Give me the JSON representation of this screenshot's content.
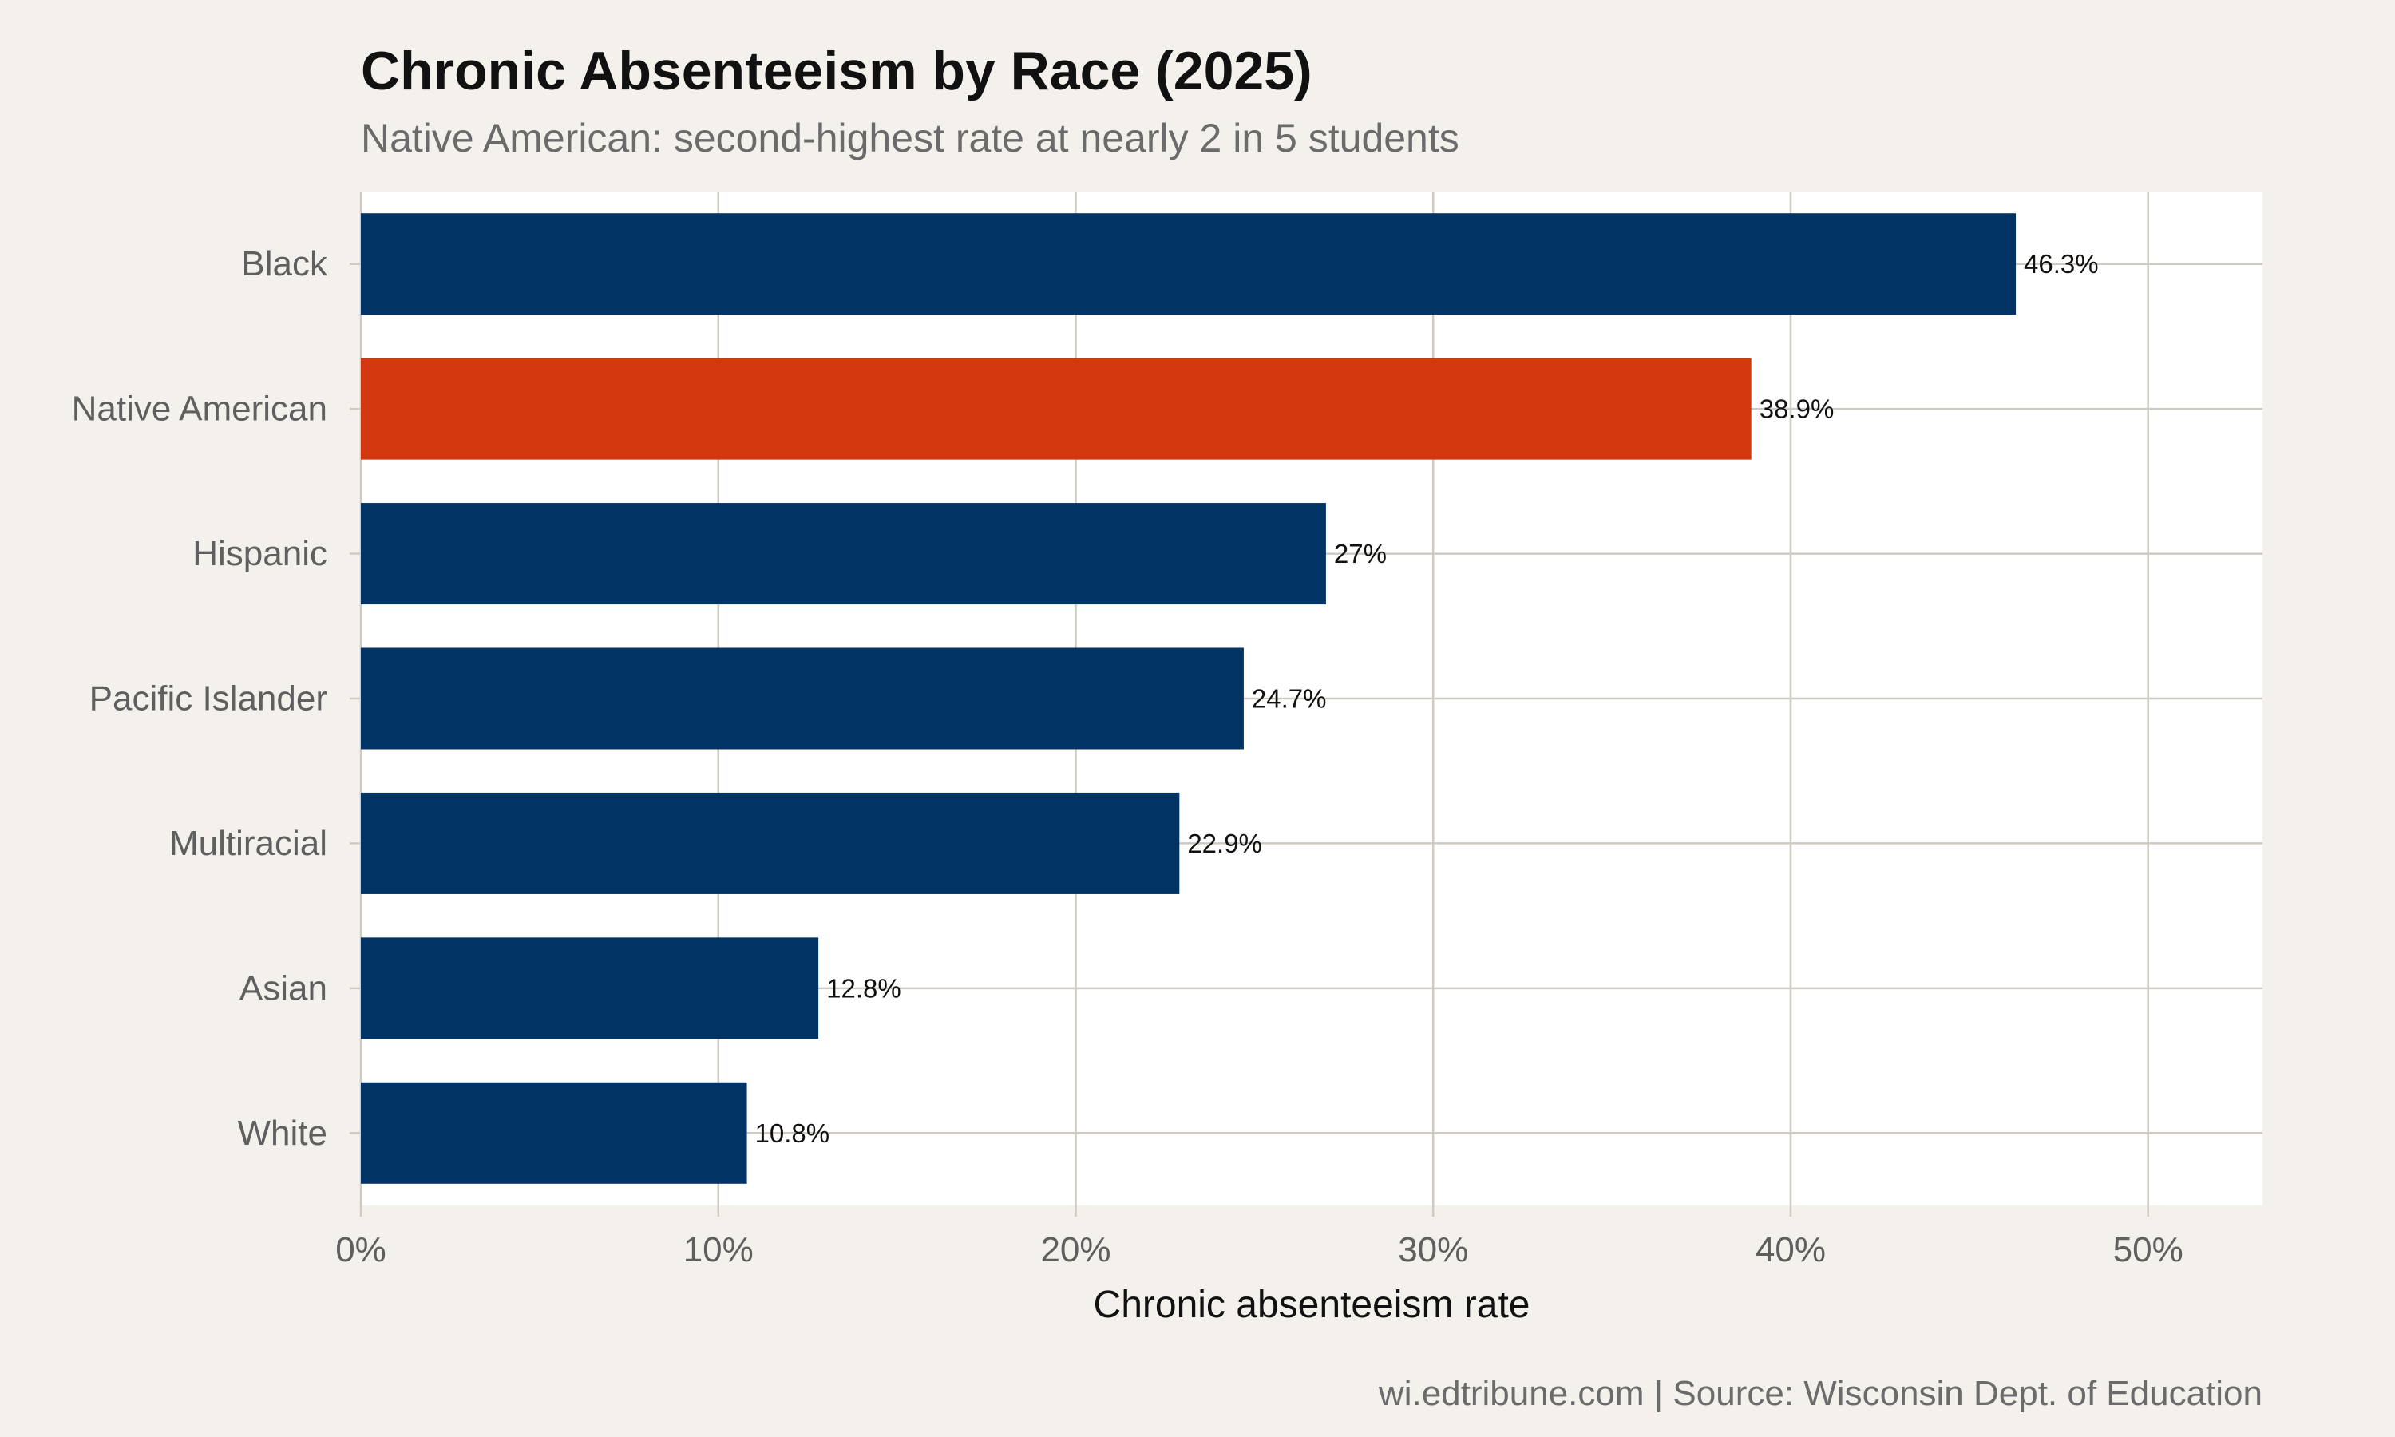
{
  "chart_data": {
    "type": "bar",
    "orientation": "horizontal",
    "title": "Chronic Absenteeism by Race (2025)",
    "subtitle": "Native American: second-highest rate at nearly 2 in 5 students",
    "xlabel": "Chronic absenteeism rate",
    "ylabel": "",
    "caption": "wi.edtribune.com | Source: Wisconsin Dept. of Education",
    "categories": [
      "Black",
      "Native American",
      "Hispanic",
      "Pacific Islander",
      "Multiracial",
      "Asian",
      "White"
    ],
    "values": [
      46.3,
      38.9,
      27,
      24.7,
      22.9,
      12.8,
      10.8
    ],
    "value_labels": [
      "46.3%",
      "38.9%",
      "27%",
      "24.7%",
      "22.9%",
      "12.8%",
      "10.8%"
    ],
    "highlight": "Native American",
    "xlim": [
      0,
      53.2
    ],
    "x_ticks": [
      0,
      10,
      20,
      30,
      40,
      50
    ],
    "x_tick_labels": [
      "0%",
      "10%",
      "20%",
      "30%",
      "40%",
      "50%"
    ],
    "grid": true,
    "legend": "none",
    "colors": {
      "default": "#013365",
      "highlight": "#d4380f",
      "panel": "#ffffff",
      "background": "#f4f1ec",
      "grid": "#cfcac2"
    }
  }
}
